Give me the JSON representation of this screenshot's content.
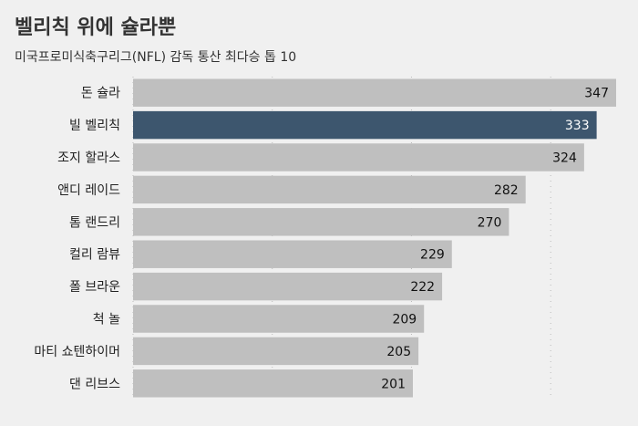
{
  "chart_data": {
    "type": "bar",
    "orientation": "horizontal",
    "title": "벨리칙 위에 슐라뿐",
    "subtitle": "미국프로미식축구리그(NFL) 감독 통산 최다승 톱 10",
    "categories": [
      "돈 슐라",
      "빌 벨리칙",
      "조지 할라스",
      "앤디 레이드",
      "톰 랜드리",
      "컬리 람뷰",
      "폴 브라운",
      "척 놀",
      "마티 쇼텐하이머",
      "댄 리브스"
    ],
    "values": [
      347,
      333,
      324,
      282,
      270,
      229,
      222,
      209,
      205,
      201
    ],
    "highlight_index": 1,
    "xlim": [
      0,
      350
    ],
    "grid": true,
    "colors": {
      "bar": "#bfbfbf",
      "highlight": "#3d566e",
      "label": "#111111",
      "highlight_label": "#ffffff",
      "grid": "#bbbbbb"
    }
  }
}
